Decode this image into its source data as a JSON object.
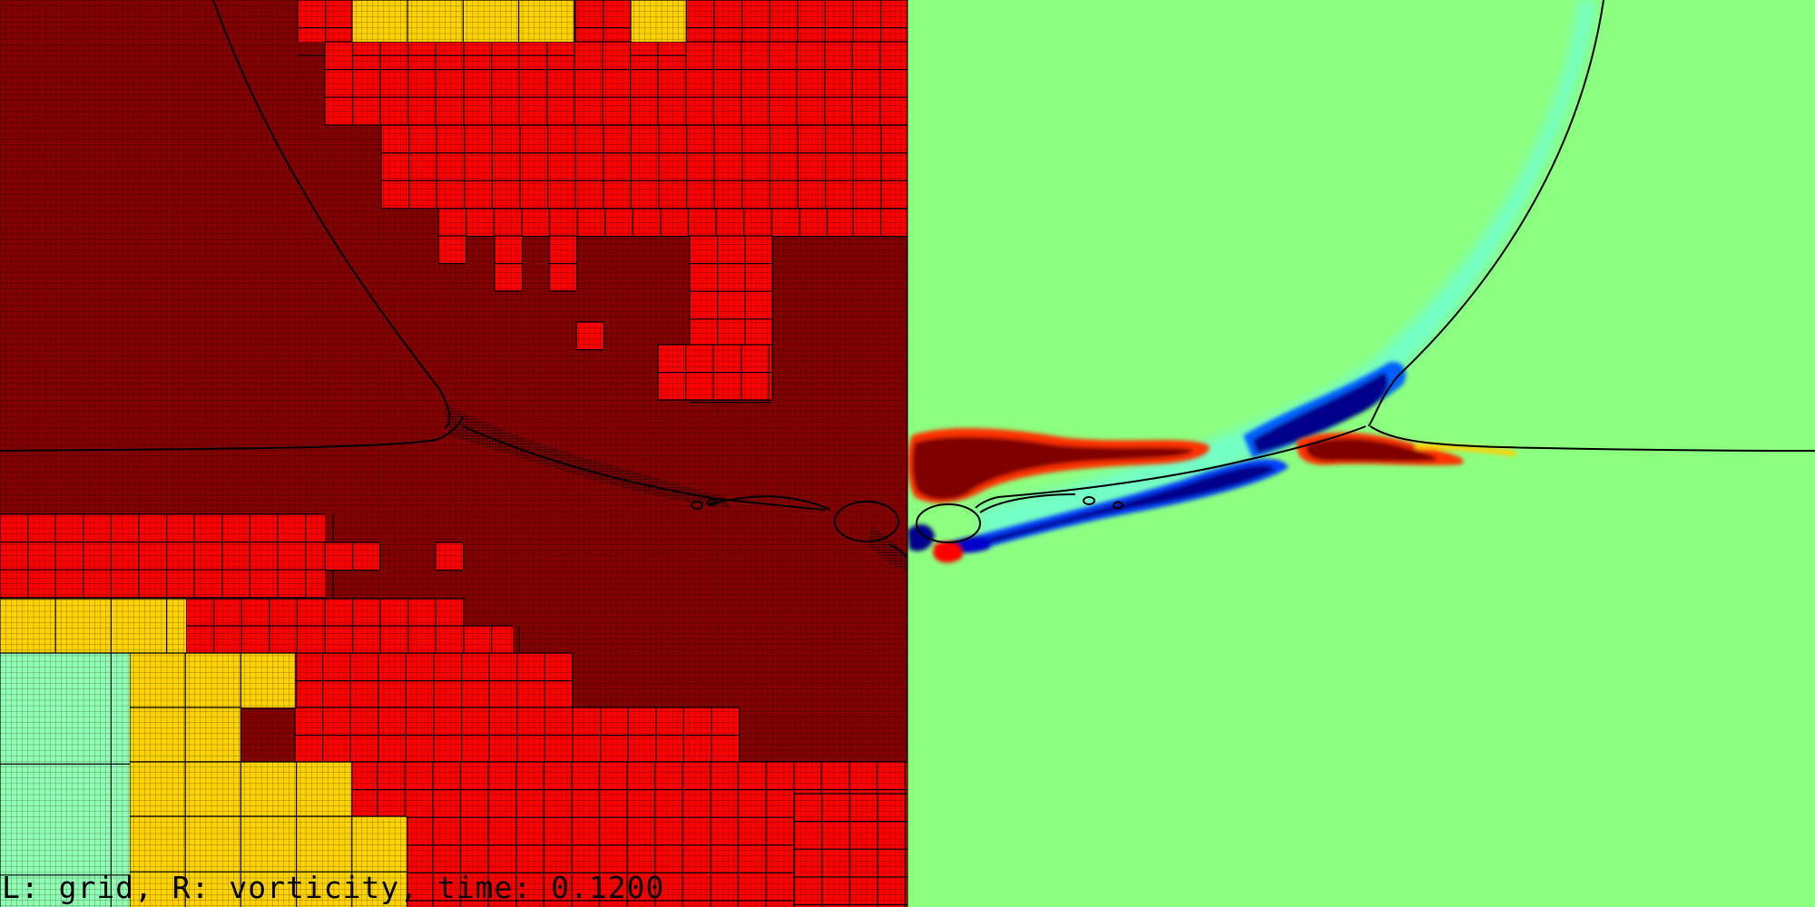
{
  "caption": {
    "prefix": "L: grid, R: vorticity, time: ",
    "time_value": "0.1200"
  },
  "colors": {
    "level_fine": "#820000",
    "level_mid": "#ff0000",
    "level_coarse": "#ffd300",
    "level_coarsest": "#90ffb4",
    "vorticity_background": "#8cff80",
    "vorticity_positive": "#800000",
    "vorticity_negative": "#00008c",
    "grid_line": "#000000",
    "interface": "#000000"
  },
  "panels": {
    "left": "grid",
    "right": "vorticity"
  }
}
